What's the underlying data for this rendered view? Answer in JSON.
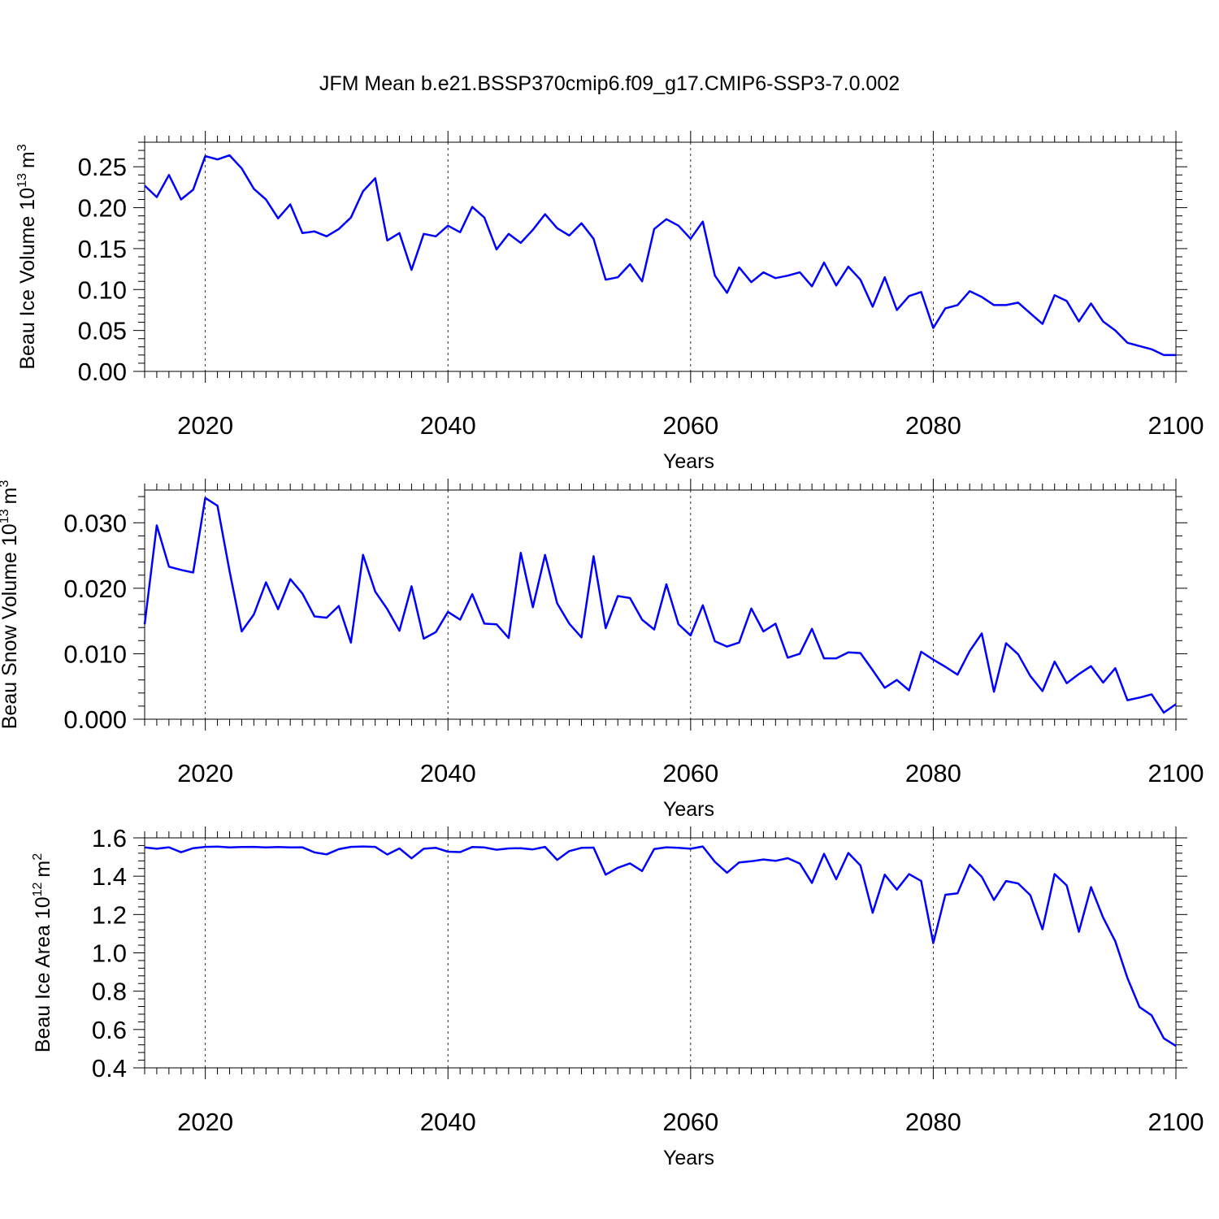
{
  "title": "JFM Mean b.e21.BSSP370cmip6.f09_g17.CMIP6-SSP3-7.0.002",
  "line_color": "#0000ff",
  "chart_data": [
    {
      "type": "line",
      "xlabel": "Years",
      "ylabel": "Beau Ice Volume 10",
      "ylabel_exp": "13",
      "ylabel_unit": "m",
      "ylabel_unit_exp": "3",
      "xlim": [
        2015,
        2100
      ],
      "ylim": [
        0.0,
        0.28
      ],
      "xticks": [
        2020,
        2040,
        2060,
        2080,
        2100
      ],
      "xtick_labels": [
        "2020",
        "2040",
        "2060",
        "2080",
        "2100"
      ],
      "yticks": [
        0.0,
        0.05,
        0.1,
        0.15,
        0.2,
        0.25
      ],
      "ytick_labels": [
        "0.00",
        "0.05",
        "0.10",
        "0.15",
        "0.20",
        "0.25"
      ],
      "grid": "dashed vertical at major x ticks",
      "series": [
        {
          "x": [
            2015,
            2016,
            2017,
            2018,
            2019,
            2020,
            2021,
            2022,
            2023,
            2024,
            2025,
            2026,
            2027,
            2028,
            2029,
            2030,
            2031,
            2032,
            2033,
            2034,
            2035,
            2036,
            2037,
            2038,
            2039,
            2040,
            2041,
            2042,
            2043,
            2044,
            2045,
            2046,
            2047,
            2048,
            2049,
            2050,
            2051,
            2052,
            2053,
            2054,
            2055,
            2056,
            2057,
            2058,
            2059,
            2060,
            2061,
            2062,
            2063,
            2064,
            2065,
            2066,
            2067,
            2068,
            2069,
            2070,
            2071,
            2072,
            2073,
            2074,
            2075,
            2076,
            2077,
            2078,
            2079,
            2080,
            2081,
            2082,
            2083,
            2084,
            2085,
            2086,
            2087,
            2088,
            2089,
            2090,
            2091,
            2092,
            2093,
            2094,
            2095,
            2096,
            2097,
            2098,
            2099,
            2100
          ],
          "y": [
            0.227,
            0.213,
            0.24,
            0.21,
            0.222,
            0.263,
            0.259,
            0.264,
            0.248,
            0.223,
            0.21,
            0.187,
            0.204,
            0.169,
            0.171,
            0.165,
            0.174,
            0.188,
            0.22,
            0.236,
            0.16,
            0.169,
            0.124,
            0.168,
            0.165,
            0.178,
            0.17,
            0.201,
            0.188,
            0.149,
            0.168,
            0.157,
            0.173,
            0.192,
            0.175,
            0.166,
            0.181,
            0.162,
            0.112,
            0.115,
            0.131,
            0.11,
            0.174,
            0.186,
            0.178,
            0.162,
            0.183,
            0.117,
            0.096,
            0.127,
            0.109,
            0.121,
            0.114,
            0.117,
            0.121,
            0.104,
            0.133,
            0.105,
            0.128,
            0.112,
            0.079,
            0.115,
            0.075,
            0.092,
            0.097,
            0.053,
            0.077,
            0.081,
            0.098,
            0.091,
            0.081,
            0.081,
            0.084,
            0.071,
            0.058,
            0.093,
            0.086,
            0.061,
            0.083,
            0.061,
            0.05,
            0.035,
            0.031,
            0.027,
            0.02,
            0.02
          ]
        }
      ]
    },
    {
      "type": "line",
      "xlabel": "Years",
      "ylabel": "Beau Snow Volume 10",
      "ylabel_exp": "13",
      "ylabel_unit": "m",
      "ylabel_unit_exp": "3",
      "xlim": [
        2015,
        2100
      ],
      "ylim": [
        0.0,
        0.035
      ],
      "xticks": [
        2020,
        2040,
        2060,
        2080,
        2100
      ],
      "xtick_labels": [
        "2020",
        "2040",
        "2060",
        "2080",
        "2100"
      ],
      "yticks": [
        0.0,
        0.01,
        0.02,
        0.03
      ],
      "ytick_labels": [
        "0.000",
        "0.010",
        "0.020",
        "0.030"
      ],
      "grid": "dashed vertical at major x ticks",
      "series": [
        {
          "x": [
            2015,
            2016,
            2017,
            2018,
            2019,
            2020,
            2021,
            2022,
            2023,
            2024,
            2025,
            2026,
            2027,
            2028,
            2029,
            2030,
            2031,
            2032,
            2033,
            2034,
            2035,
            2036,
            2037,
            2038,
            2039,
            2040,
            2041,
            2042,
            2043,
            2044,
            2045,
            2046,
            2047,
            2048,
            2049,
            2050,
            2051,
            2052,
            2053,
            2054,
            2055,
            2056,
            2057,
            2058,
            2059,
            2060,
            2061,
            2062,
            2063,
            2064,
            2065,
            2066,
            2067,
            2068,
            2069,
            2070,
            2071,
            2072,
            2073,
            2074,
            2075,
            2076,
            2077,
            2078,
            2079,
            2080,
            2081,
            2082,
            2083,
            2084,
            2085,
            2086,
            2087,
            2088,
            2089,
            2090,
            2091,
            2092,
            2093,
            2094,
            2095,
            2096,
            2097,
            2098,
            2099,
            2100
          ],
          "y": [
            0.0145,
            0.0296,
            0.0233,
            0.0228,
            0.0224,
            0.0338,
            0.0326,
            0.0226,
            0.0134,
            0.016,
            0.0209,
            0.0168,
            0.0214,
            0.0192,
            0.0157,
            0.0155,
            0.0173,
            0.0117,
            0.0251,
            0.0195,
            0.0168,
            0.0135,
            0.0203,
            0.0123,
            0.0133,
            0.0164,
            0.0152,
            0.0191,
            0.0146,
            0.0145,
            0.0124,
            0.0254,
            0.0171,
            0.0251,
            0.0177,
            0.0146,
            0.0125,
            0.0249,
            0.0139,
            0.0188,
            0.0185,
            0.0152,
            0.0137,
            0.0206,
            0.0145,
            0.0128,
            0.0174,
            0.0119,
            0.0111,
            0.0117,
            0.0169,
            0.0134,
            0.0146,
            0.0094,
            0.01,
            0.0138,
            0.0093,
            0.0093,
            0.0102,
            0.0101,
            0.0075,
            0.0048,
            0.006,
            0.0044,
            0.0103,
            0.0091,
            0.008,
            0.0068,
            0.0104,
            0.0131,
            0.0042,
            0.0116,
            0.0099,
            0.0066,
            0.0043,
            0.0088,
            0.0055,
            0.0069,
            0.0081,
            0.0056,
            0.0078,
            0.0029,
            0.0033,
            0.0038,
            0.001,
            0.0023
          ]
        }
      ]
    },
    {
      "type": "line",
      "xlabel": "Years",
      "ylabel": "Beau Ice Area 10",
      "ylabel_exp": "12",
      "ylabel_unit": "m",
      "ylabel_unit_exp": "2",
      "xlim": [
        2015,
        2100
      ],
      "ylim": [
        0.4,
        1.6
      ],
      "xticks": [
        2020,
        2040,
        2060,
        2080,
        2100
      ],
      "xtick_labels": [
        "2020",
        "2040",
        "2060",
        "2080",
        "2100"
      ],
      "yticks": [
        0.4,
        0.6,
        0.8,
        1.0,
        1.2,
        1.4,
        1.6
      ],
      "ytick_labels": [
        "0.4",
        "0.6",
        "0.8",
        "1.0",
        "1.2",
        "1.4",
        "1.6"
      ],
      "grid": "dashed vertical at major x ticks",
      "series": [
        {
          "x": [
            2015,
            2016,
            2017,
            2018,
            2019,
            2020,
            2021,
            2022,
            2023,
            2024,
            2025,
            2026,
            2027,
            2028,
            2029,
            2030,
            2031,
            2032,
            2033,
            2034,
            2035,
            2036,
            2037,
            2038,
            2039,
            2040,
            2041,
            2042,
            2043,
            2044,
            2045,
            2046,
            2047,
            2048,
            2049,
            2050,
            2051,
            2052,
            2053,
            2054,
            2055,
            2056,
            2057,
            2058,
            2059,
            2060,
            2061,
            2062,
            2063,
            2064,
            2065,
            2066,
            2067,
            2068,
            2069,
            2070,
            2071,
            2072,
            2073,
            2074,
            2075,
            2076,
            2077,
            2078,
            2079,
            2080,
            2081,
            2082,
            2083,
            2084,
            2085,
            2086,
            2087,
            2088,
            2089,
            2090,
            2091,
            2092,
            2093,
            2094,
            2095,
            2096,
            2097,
            2098,
            2099,
            2100
          ],
          "y": [
            1.55,
            1.543,
            1.551,
            1.525,
            1.546,
            1.553,
            1.554,
            1.55,
            1.552,
            1.553,
            1.55,
            1.552,
            1.55,
            1.551,
            1.524,
            1.514,
            1.541,
            1.553,
            1.555,
            1.553,
            1.513,
            1.545,
            1.493,
            1.543,
            1.548,
            1.528,
            1.526,
            1.552,
            1.55,
            1.538,
            1.545,
            1.546,
            1.54,
            1.553,
            1.485,
            1.531,
            1.548,
            1.549,
            1.408,
            1.444,
            1.467,
            1.427,
            1.542,
            1.551,
            1.548,
            1.543,
            1.555,
            1.475,
            1.418,
            1.472,
            1.478,
            1.487,
            1.48,
            1.494,
            1.466,
            1.365,
            1.517,
            1.384,
            1.521,
            1.456,
            1.209,
            1.408,
            1.33,
            1.411,
            1.375,
            1.051,
            1.303,
            1.311,
            1.46,
            1.397,
            1.276,
            1.375,
            1.362,
            1.301,
            1.123,
            1.411,
            1.352,
            1.11,
            1.343,
            1.184,
            1.06,
            0.869,
            0.717,
            0.674,
            0.554,
            0.514
          ]
        }
      ]
    }
  ]
}
